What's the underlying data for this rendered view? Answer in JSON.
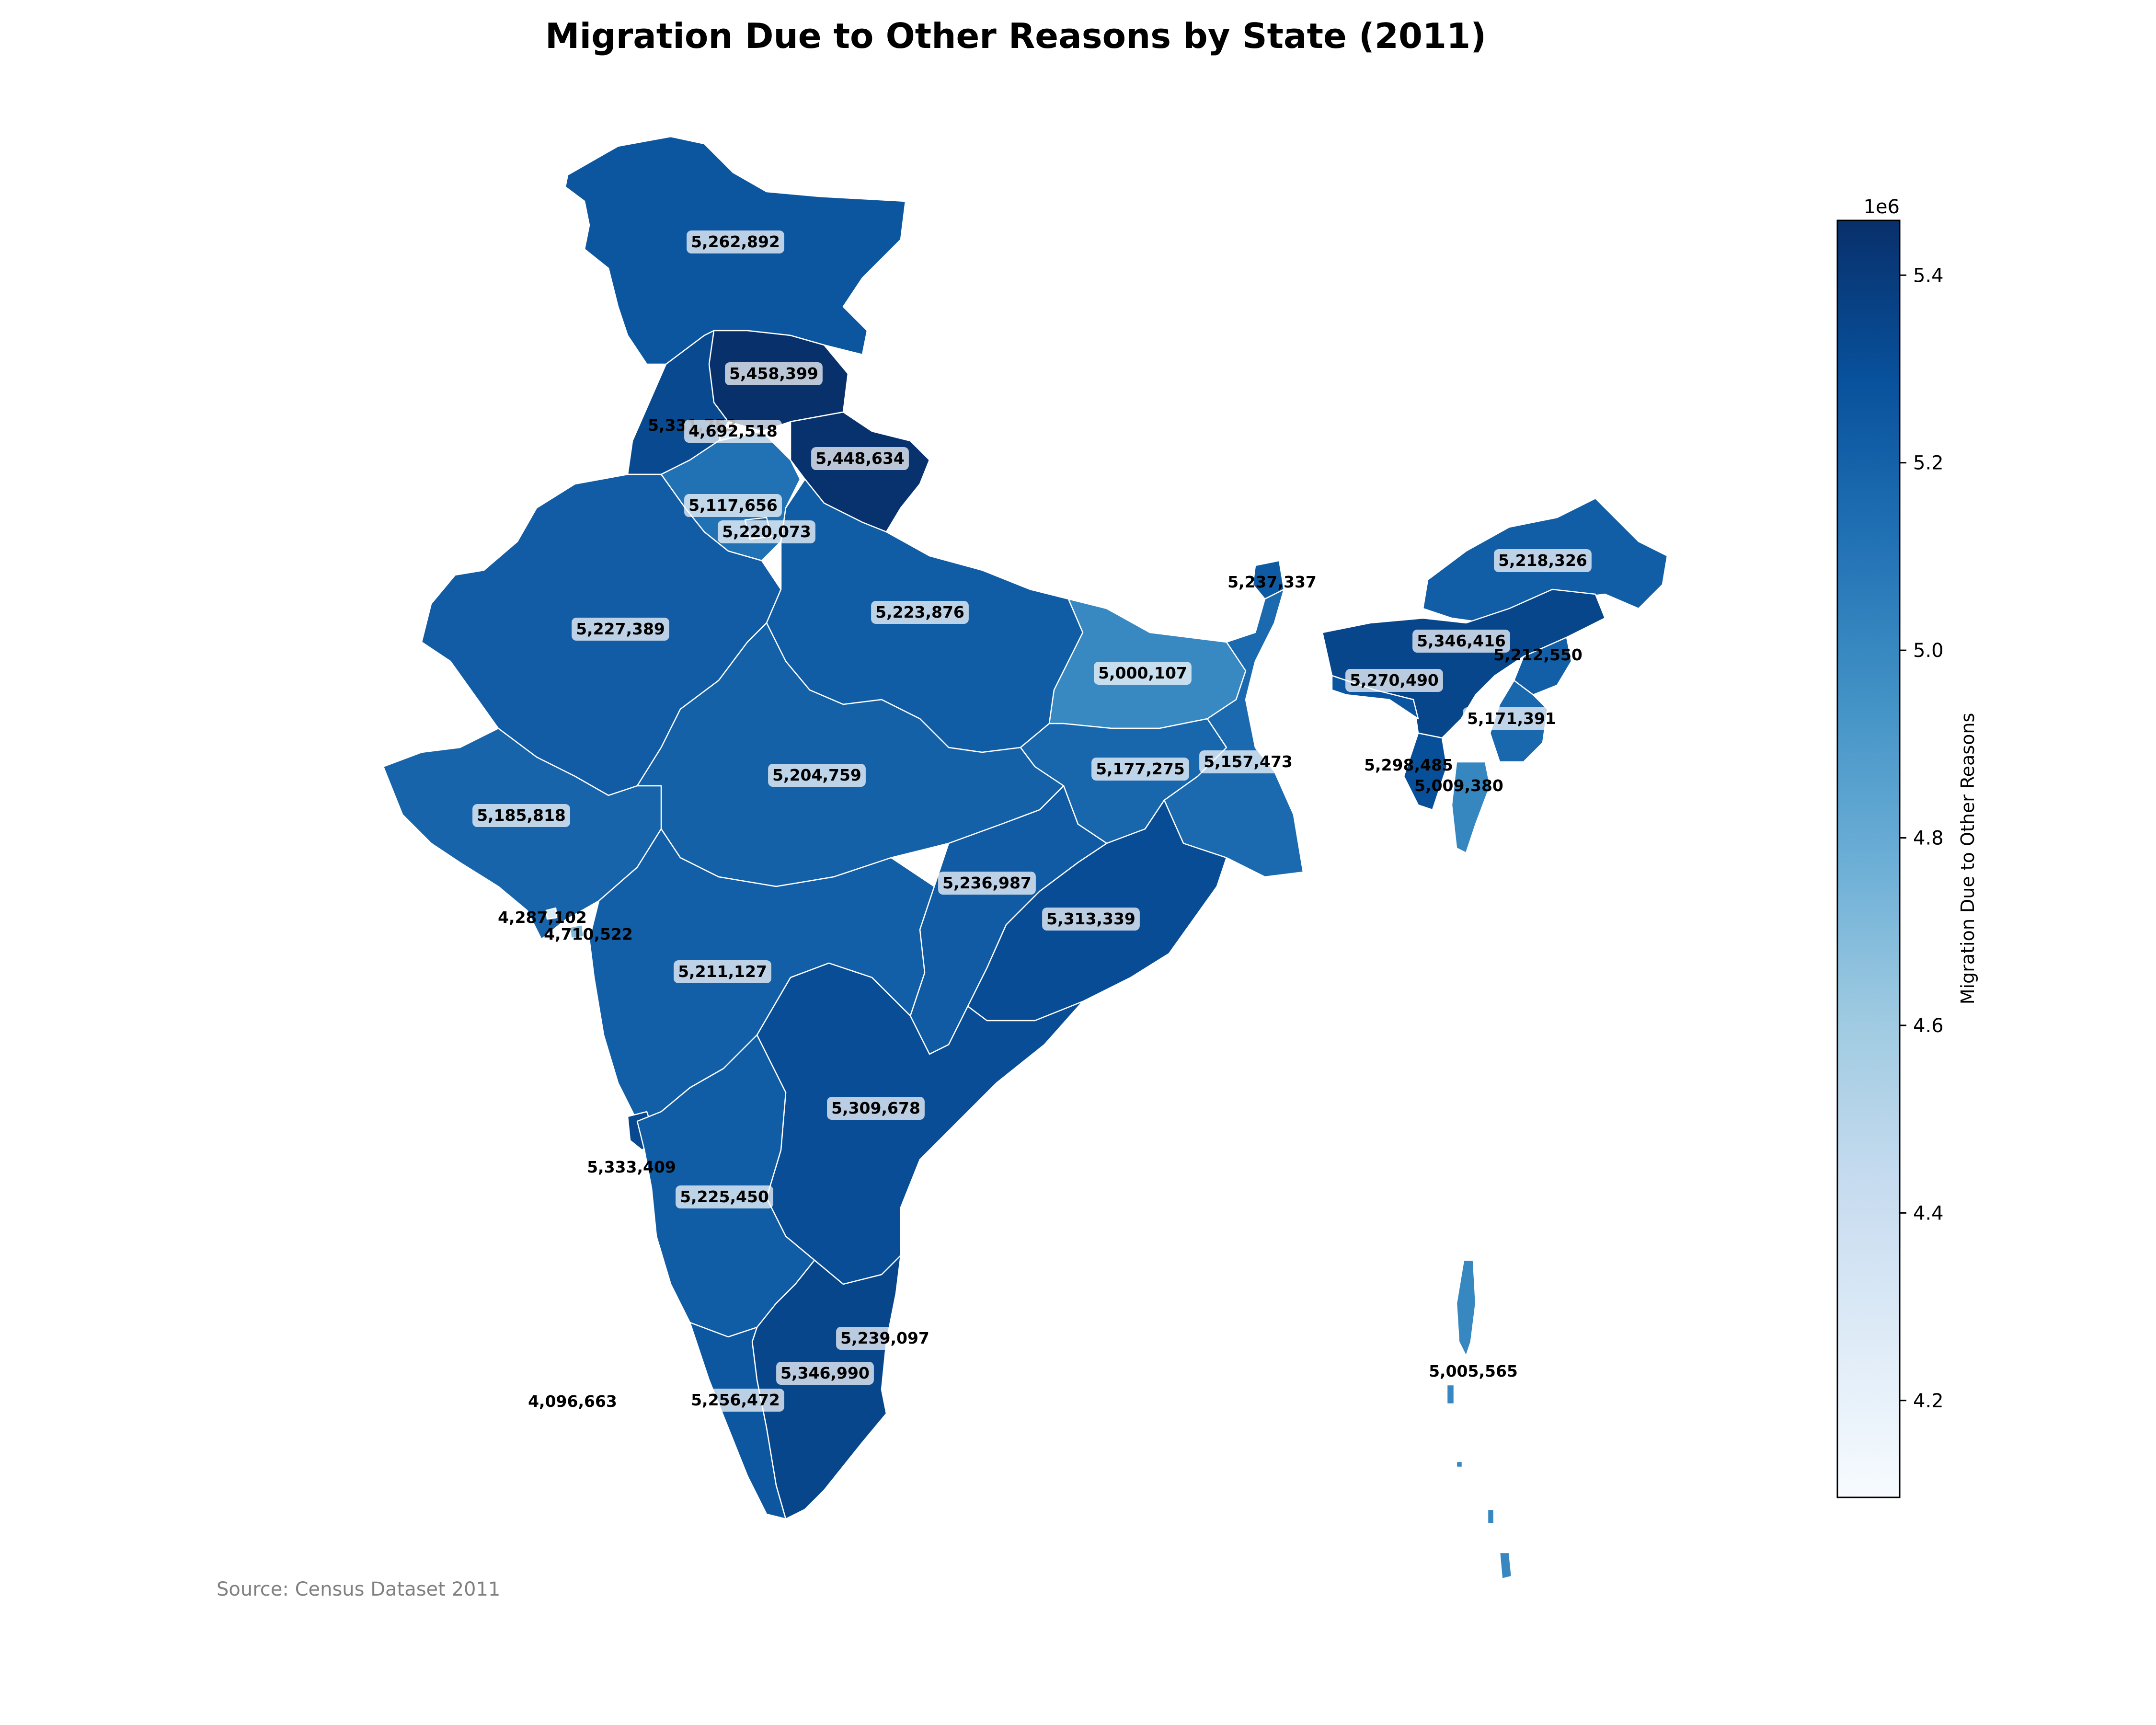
{
  "chart_data": {
    "type": "choropleth",
    "title": "Migration Due to Other Reasons by State (2011)",
    "source": "Source: Census Dataset 2011",
    "colorbar": {
      "label": "Migration Due to Other Reasons",
      "exponent_label": "1e6",
      "range": [
        4096663,
        5458399
      ],
      "ticks": [
        4.2,
        4.4,
        4.6,
        4.8,
        5.0,
        5.2,
        5.4
      ],
      "tick_labels": [
        "4.2",
        "4.4",
        "4.6",
        "4.8",
        "5.0",
        "5.2",
        "5.4"
      ],
      "colormap": "Blues"
    },
    "regions": [
      {
        "value": 5262892,
        "label": "5,262,892"
      },
      {
        "value": 5458399,
        "label": "5,458,399"
      },
      {
        "value": 5331753,
        "label": "5,331,753"
      },
      {
        "value": 4692518,
        "label": "4,692,518"
      },
      {
        "value": 5448634,
        "label": "5,448,634"
      },
      {
        "value": 5117656,
        "label": "5,117,656"
      },
      {
        "value": 5220073,
        "label": "5,220,073"
      },
      {
        "value": 5227389,
        "label": "5,227,389"
      },
      {
        "value": 5223876,
        "label": "5,223,876"
      },
      {
        "value": 5000107,
        "label": "5,000,107"
      },
      {
        "value": 5237337,
        "label": "5,237,337"
      },
      {
        "value": 5218326,
        "label": "5,218,326"
      },
      {
        "value": 5346416,
        "label": "5,346,416"
      },
      {
        "value": 5212550,
        "label": "5,212,550"
      },
      {
        "value": 5270490,
        "label": "5,270,490"
      },
      {
        "value": 5171391,
        "label": "5,171,391"
      },
      {
        "value": 5298485,
        "label": "5,298,485"
      },
      {
        "value": 5009380,
        "label": "5,009,380"
      },
      {
        "value": 5177275,
        "label": "5,177,275"
      },
      {
        "value": 5157473,
        "label": "5,157,473"
      },
      {
        "value": 5204759,
        "label": "5,204,759"
      },
      {
        "value": 5185818,
        "label": "5,185,818"
      },
      {
        "value": 4287102,
        "label": "4,287,102"
      },
      {
        "value": 4710522,
        "label": "4,710,522"
      },
      {
        "value": 5236987,
        "label": "5,236,987"
      },
      {
        "value": 5313339,
        "label": "5,313,339"
      },
      {
        "value": 5211127,
        "label": "5,211,127"
      },
      {
        "value": 5309678,
        "label": "5,309,678"
      },
      {
        "value": 5333409,
        "label": "5,333,409"
      },
      {
        "value": 5225450,
        "label": "5,225,450"
      },
      {
        "value": 5239097,
        "label": "5,239,097"
      },
      {
        "value": 5346990,
        "label": "5,346,990"
      },
      {
        "value": 5256472,
        "label": "5,256,472"
      },
      {
        "value": 4096663,
        "label": "4,096,663"
      },
      {
        "value": 5005565,
        "label": "5,005,565"
      }
    ]
  }
}
